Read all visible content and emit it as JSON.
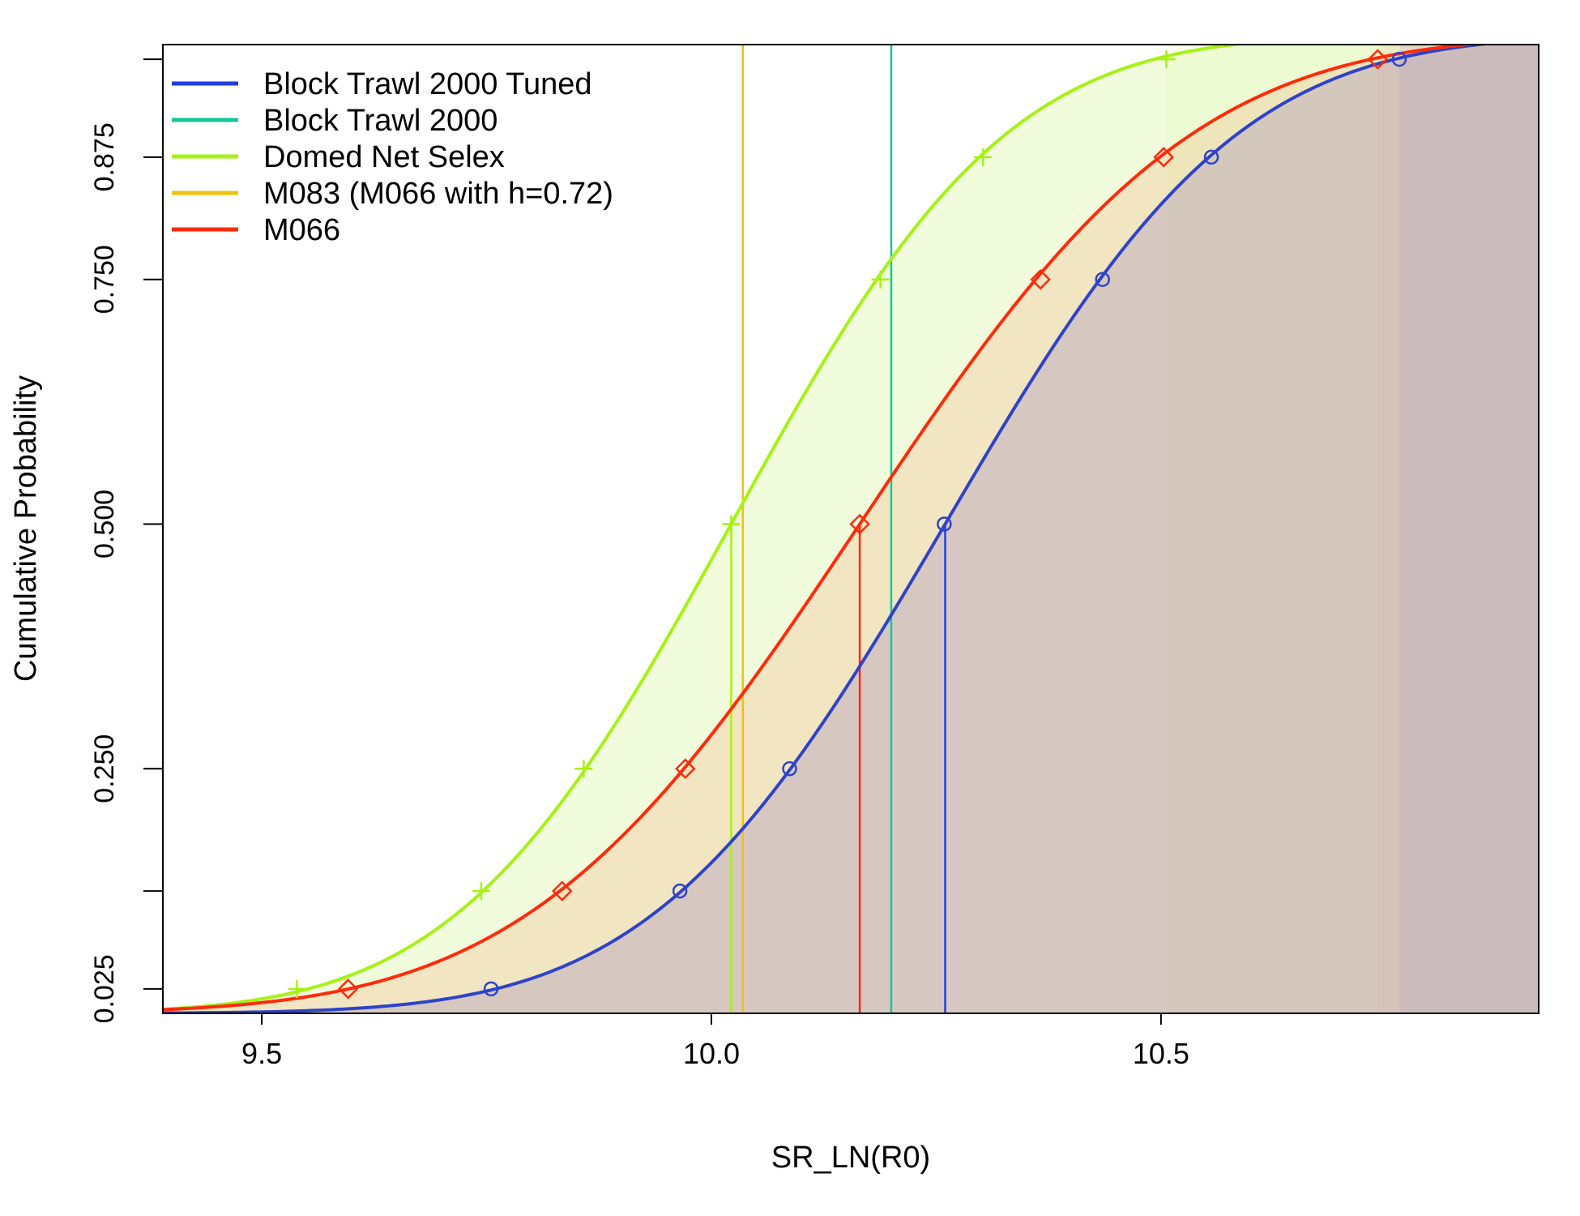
{
  "chart_data": {
    "type": "line",
    "title": "",
    "xlabel": "SR_LN(R0)",
    "ylabel": "Cumulative Probability",
    "xlim": [
      9.39,
      10.92
    ],
    "ylim": [
      0.0,
      0.99
    ],
    "x_ticks": [
      9.5,
      10.0,
      10.5
    ],
    "x_tick_labels": [
      "9.5",
      "10.0",
      "10.5"
    ],
    "y_ticks": [
      0.025,
      0.125,
      0.25,
      0.5,
      0.75,
      0.875,
      0.975
    ],
    "y_tick_labels": [
      "0.025",
      "",
      "0.250",
      "0.500",
      "0.750",
      "0.875",
      ""
    ],
    "probability_levels": [
      0.025,
      0.125,
      0.25,
      0.5,
      0.75,
      0.875,
      0.975
    ],
    "grid": false,
    "legend_position": "top-left",
    "series": [
      {
        "name": "Block Trawl 2000 Tuned",
        "color": "#1f3fe0",
        "curve_color": "#2f43c8",
        "band_color": "#b4a3c2",
        "marker": "circle",
        "median": 10.26,
        "sd": 0.255,
        "quantiles": [
          9.755,
          9.965,
          10.087,
          10.259,
          10.435,
          10.556,
          10.765
        ],
        "vertical_line": 10.26,
        "band_from": 9.755,
        "band_to": 10.765
      },
      {
        "name": "Block Trawl 2000",
        "color": "#14c79a",
        "vertical_line": 10.2
      },
      {
        "name": "Domed Net Selex",
        "color": "#a6f212",
        "curve_color": "#a6f212",
        "band_color": "#def8b2",
        "marker": "plus",
        "median": 10.022,
        "sd": 0.24,
        "quantiles": [
          9.539,
          9.744,
          9.858,
          10.022,
          10.188,
          10.302,
          10.506
        ],
        "vertical_line": 10.022,
        "band_from": 9.539,
        "band_to": 10.506
      },
      {
        "name": "M083 (M066 with h=0.72)",
        "color": "#f0c20a",
        "vertical_line": 10.035
      },
      {
        "name": "M066",
        "color": "#ff2a0a",
        "curve_color": "#ff2a0a",
        "band_color": "#f3c9a0",
        "marker": "diamond",
        "median": 10.165,
        "sd": 0.29,
        "quantiles": [
          9.596,
          9.834,
          9.971,
          10.165,
          10.366,
          10.503,
          10.741
        ],
        "vertical_line": 10.165,
        "band_from": 9.596,
        "band_to": 10.741
      }
    ]
  }
}
